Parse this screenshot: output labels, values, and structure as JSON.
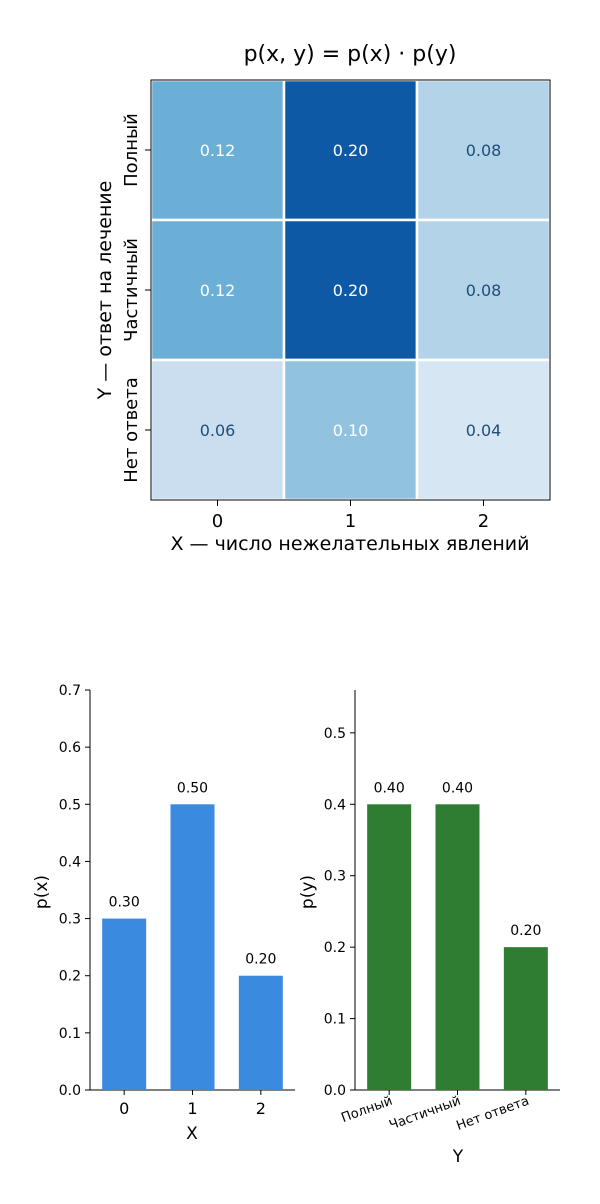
{
  "chart_data": [
    {
      "type": "heatmap",
      "title": "p(x, y) = p(x) · p(y)",
      "xlabel": "X — число нежелательных явлений",
      "ylabel": "Y — ответ на лечение",
      "x_categories": [
        "0",
        "1",
        "2"
      ],
      "y_categories": [
        "Полный",
        "Частичный",
        "Нет ответа"
      ],
      "values": [
        [
          0.12,
          0.2,
          0.08
        ],
        [
          0.12,
          0.2,
          0.08
        ],
        [
          0.06,
          0.1,
          0.04
        ]
      ],
      "cell_labels": [
        [
          "0.12",
          "0.20",
          "0.08"
        ],
        [
          "0.12",
          "0.20",
          "0.08"
        ],
        [
          "0.06",
          "0.10",
          "0.04"
        ]
      ],
      "colormap": "Blues"
    },
    {
      "type": "bar",
      "categories": [
        "0",
        "1",
        "2"
      ],
      "values": [
        0.3,
        0.5,
        0.2
      ],
      "value_labels": [
        "0.30",
        "0.50",
        "0.20"
      ],
      "xlabel": "X",
      "ylabel": "p(x)",
      "ylim": [
        0,
        0.7
      ],
      "yticks": [
        "0.0",
        "0.1",
        "0.2",
        "0.3",
        "0.4",
        "0.5",
        "0.6",
        "0.7"
      ],
      "ytick_values": [
        0,
        0.1,
        0.2,
        0.3,
        0.4,
        0.5,
        0.6,
        0.7
      ],
      "color": "#3a8ae0",
      "grid": false
    },
    {
      "type": "bar",
      "categories": [
        "Полный",
        "Частичный",
        "Нет ответа"
      ],
      "values": [
        0.4,
        0.4,
        0.2
      ],
      "value_labels": [
        "0.40",
        "0.40",
        "0.20"
      ],
      "xlabel": "Y",
      "ylabel": "p(y)",
      "ylim": [
        0,
        0.56
      ],
      "yticks": [
        "0.0",
        "0.1",
        "0.2",
        "0.3",
        "0.4",
        "0.5"
      ],
      "ytick_values": [
        0,
        0.1,
        0.2,
        0.3,
        0.4,
        0.5
      ],
      "color": "#2e7d32",
      "grid": false
    }
  ]
}
